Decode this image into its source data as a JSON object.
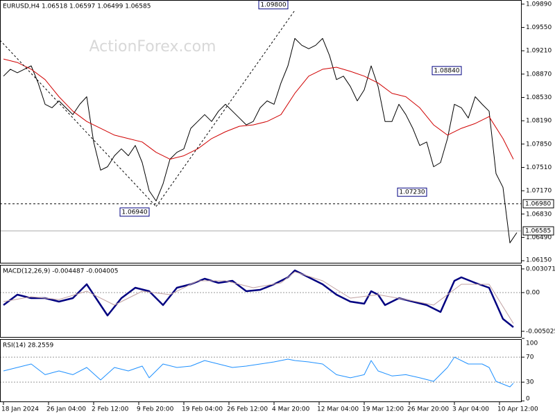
{
  "chart_data": [
    {
      "type": "line",
      "title": "EURUSD,H4  1.06518 1.06597 1.06499 1.06585",
      "watermark": "ActionForex.com",
      "xlim": [
        -0.5,
        74.7
      ],
      "ylim": [
        1.0611,
        1.0995
      ],
      "yticks": [
        {
          "value": 1.0989,
          "label": "1.09890"
        },
        {
          "value": 1.0955,
          "label": "1.09550"
        },
        {
          "value": 1.0921,
          "label": "1.09210"
        },
        {
          "value": 1.0887,
          "label": "1.08870"
        },
        {
          "value": 1.0853,
          "label": "1.08530"
        },
        {
          "value": 1.0819,
          "label": "1.08190"
        },
        {
          "value": 1.0785,
          "label": "1.07850"
        },
        {
          "value": 1.0751,
          "label": "1.07510"
        },
        {
          "value": 1.0717,
          "label": "1.07170"
        },
        {
          "value": 1.0683,
          "label": "1.06830"
        },
        {
          "value": 1.0649,
          "label": "1.06490"
        },
        {
          "value": 1.0615,
          "label": "1.06150"
        }
      ],
      "hlines": [
        {
          "value": 1.0698,
          "label": "1.06980",
          "style": "dashed"
        },
        {
          "value": 1.06585,
          "label": "1.06585",
          "style": "solid"
        }
      ],
      "annotations": [
        {
          "label": "1.09800",
          "x": 42,
          "value": 1.098,
          "position": "above"
        },
        {
          "label": "1.08840",
          "x": 67,
          "value": 1.0884,
          "position": "above"
        },
        {
          "label": "1.07230",
          "x": 62,
          "value": 1.0723,
          "position": "below"
        },
        {
          "label": "1.06940",
          "x": 22,
          "value": 1.0694,
          "position": "below"
        }
      ],
      "series": [
        {
          "color": "#000000",
          "width": 1,
          "x": [
            0,
            1,
            2,
            3,
            4,
            5,
            6,
            7,
            8,
            9,
            10,
            11,
            12,
            13,
            14,
            15,
            16,
            17,
            18,
            19,
            20,
            21,
            22,
            23,
            24,
            25,
            26,
            27,
            28,
            29,
            30,
            31,
            32,
            33,
            34,
            35,
            36,
            37,
            38,
            39,
            40,
            41,
            42,
            43,
            44,
            45,
            46,
            47,
            48,
            49,
            50,
            51,
            52,
            53,
            54,
            55,
            56,
            57,
            58,
            59,
            60,
            61,
            62,
            63,
            64,
            65,
            66,
            67,
            68,
            69,
            70,
            71,
            72,
            73,
            74
          ],
          "values": [
            1.0884,
            1.0894,
            1.0889,
            1.0894,
            1.0899,
            1.0874,
            1.0843,
            1.0838,
            1.0848,
            1.0838,
            1.0828,
            1.0843,
            1.0854,
            1.0788,
            1.0747,
            1.0752,
            1.0768,
            1.0778,
            1.0768,
            1.0783,
            1.0758,
            1.0717,
            1.0702,
            1.0727,
            1.0763,
            1.0773,
            1.0778,
            1.0808,
            1.0818,
            1.0828,
            1.0818,
            1.0833,
            1.0843,
            1.0833,
            1.0823,
            1.0813,
            1.0818,
            1.0838,
            1.0848,
            1.0843,
            1.0874,
            1.0899,
            1.0939,
            1.0929,
            1.0924,
            1.0929,
            1.0939,
            1.0914,
            1.0879,
            1.0884,
            1.0869,
            1.0848,
            1.0864,
            1.0899,
            1.0869,
            1.0818,
            1.0818,
            1.0843,
            1.0828,
            1.0808,
            1.0783,
            1.0788,
            1.0752,
            1.0758,
            1.0793,
            1.0843,
            1.0838,
            1.0823,
            1.0854,
            1.0843,
            1.0833,
            1.0742,
            1.0722,
            1.0641,
            1.0656
          ]
        },
        {
          "color": "#d00000",
          "width": 1,
          "x": [
            0,
            2,
            4,
            6,
            8,
            10,
            12,
            14,
            16,
            18,
            20,
            22,
            24,
            26,
            28,
            30,
            32,
            34,
            36,
            38,
            40,
            42,
            44,
            46,
            48,
            50,
            52,
            54,
            56,
            58,
            60,
            62,
            64,
            66,
            68,
            70,
            72,
            73.5
          ],
          "values": [
            1.0909,
            1.0904,
            1.0894,
            1.0879,
            1.0854,
            1.0833,
            1.0818,
            1.0808,
            1.0798,
            1.0793,
            1.0788,
            1.0773,
            1.0763,
            1.0768,
            1.0778,
            1.0793,
            1.0803,
            1.0811,
            1.0813,
            1.0818,
            1.0828,
            1.0859,
            1.0884,
            1.0894,
            1.0897,
            1.0891,
            1.0884,
            1.0874,
            1.0859,
            1.0854,
            1.0838,
            1.0813,
            1.0798,
            1.0808,
            1.0815,
            1.0825,
            1.0793,
            1.0763
          ]
        }
      ]
    },
    {
      "type": "line",
      "title": "MACD(12,26,9) -0.004487 -0.004005",
      "xlim": [
        -0.5,
        74.7
      ],
      "ylim": [
        -0.00585,
        0.0036
      ],
      "yticks": [
        0.003071,
        {
          "value": 0,
          "label": "0.00"
        },
        -0.005025
      ],
      "levels": [
        0
      ],
      "series": [
        {
          "color": "#000080",
          "width": 2.5,
          "x": [
            0,
            2,
            4,
            6,
            8,
            10,
            12,
            14,
            15,
            17,
            19,
            21,
            23,
            25,
            27,
            29,
            31,
            33,
            35,
            37,
            39,
            41,
            42,
            44,
            46,
            48,
            50,
            52,
            53,
            54,
            55,
            57,
            59,
            61,
            63,
            65,
            66,
            68,
            70,
            72,
            73.5
          ],
          "values": [
            -0.00162,
            -0.00027,
            -0.00072,
            -0.00072,
            -0.00117,
            -0.00072,
            0.00108,
            -0.00162,
            -0.00297,
            -0.00072,
            0.00063,
            0.00018,
            -0.00162,
            0.00063,
            0.00108,
            0.0018,
            0.00126,
            0.00153,
            0.00018,
            0.00036,
            0.00108,
            0.00198,
            0.00288,
            0.00198,
            0.00108,
            -0.00027,
            -0.00117,
            -0.00144,
            0.00018,
            -0.00027,
            -0.00162,
            -0.00072,
            -0.00117,
            -0.00162,
            -0.00252,
            0.00153,
            0.00198,
            0.00126,
            0.00063,
            -0.00342,
            -0.004487
          ]
        },
        {
          "color": "#c0a0a0",
          "width": 1,
          "x": [
            0,
            4,
            8,
            12,
            16,
            20,
            24,
            28,
            32,
            36,
            40,
            42,
            46,
            50,
            54,
            58,
            62,
            66,
            70,
            73.5
          ],
          "values": [
            -0.00117,
            -0.00054,
            -0.0009,
            0.00018,
            -0.00162,
            0.00018,
            -0.00027,
            0.00153,
            0.00153,
            0.00063,
            0.00126,
            0.0027,
            0.00153,
            -0.00072,
            -0.00027,
            -0.0009,
            -0.00162,
            0.00108,
            0.00108,
            -0.004005
          ]
        }
      ]
    },
    {
      "type": "line",
      "title": "RSI(14) 28.2559",
      "xlim": [
        -0.5,
        74.7
      ],
      "ylim": [
        -2,
        99
      ],
      "yticks": [
        100,
        70,
        30,
        0
      ],
      "levels": [
        70,
        30
      ],
      "xticks": [
        {
          "value": 0,
          "label": "18 Jan 2024"
        },
        {
          "value": 6.5,
          "label": "26 Jan 04:00"
        },
        {
          "value": 13,
          "label": "2 Feb 12:00"
        },
        {
          "value": 19.5,
          "label": "9 Feb 20:00"
        },
        {
          "value": 26,
          "label": "19 Feb 04:00"
        },
        {
          "value": 32.5,
          "label": "26 Feb 12:00"
        },
        {
          "value": 39,
          "label": "4 Mar 20:00"
        },
        {
          "value": 45.5,
          "label": "12 Mar 04:00"
        },
        {
          "value": 52,
          "label": "19 Mar 12:00"
        },
        {
          "value": 58.5,
          "label": "26 Mar 20:00"
        },
        {
          "value": 65,
          "label": "3 Apr 04:00"
        },
        {
          "value": 71.5,
          "label": "10 Apr 12:00"
        }
      ],
      "series": [
        {
          "color": "#1e90ff",
          "width": 1,
          "x": [
            0,
            2,
            4,
            6,
            8,
            10,
            12,
            14,
            16,
            18,
            20,
            21,
            23,
            25,
            27,
            29,
            31,
            33,
            35,
            37,
            39,
            41,
            42,
            44,
            46,
            48,
            50,
            52,
            53,
            54,
            56,
            58,
            60,
            62,
            64,
            65,
            67,
            69,
            70,
            71,
            73,
            73.5
          ],
          "values": [
            48,
            53.5,
            59,
            42,
            48,
            42,
            53.5,
            33.5,
            53.5,
            48,
            55.7,
            37,
            59,
            53.5,
            55.7,
            64.6,
            59,
            53.5,
            55.7,
            59,
            62.4,
            66.8,
            64.6,
            62.4,
            59,
            42,
            37,
            42,
            64.6,
            48,
            40,
            42,
            37,
            31.3,
            53.5,
            70,
            59,
            59,
            53.5,
            31.3,
            22.4,
            28.26
          ]
        }
      ]
    }
  ]
}
